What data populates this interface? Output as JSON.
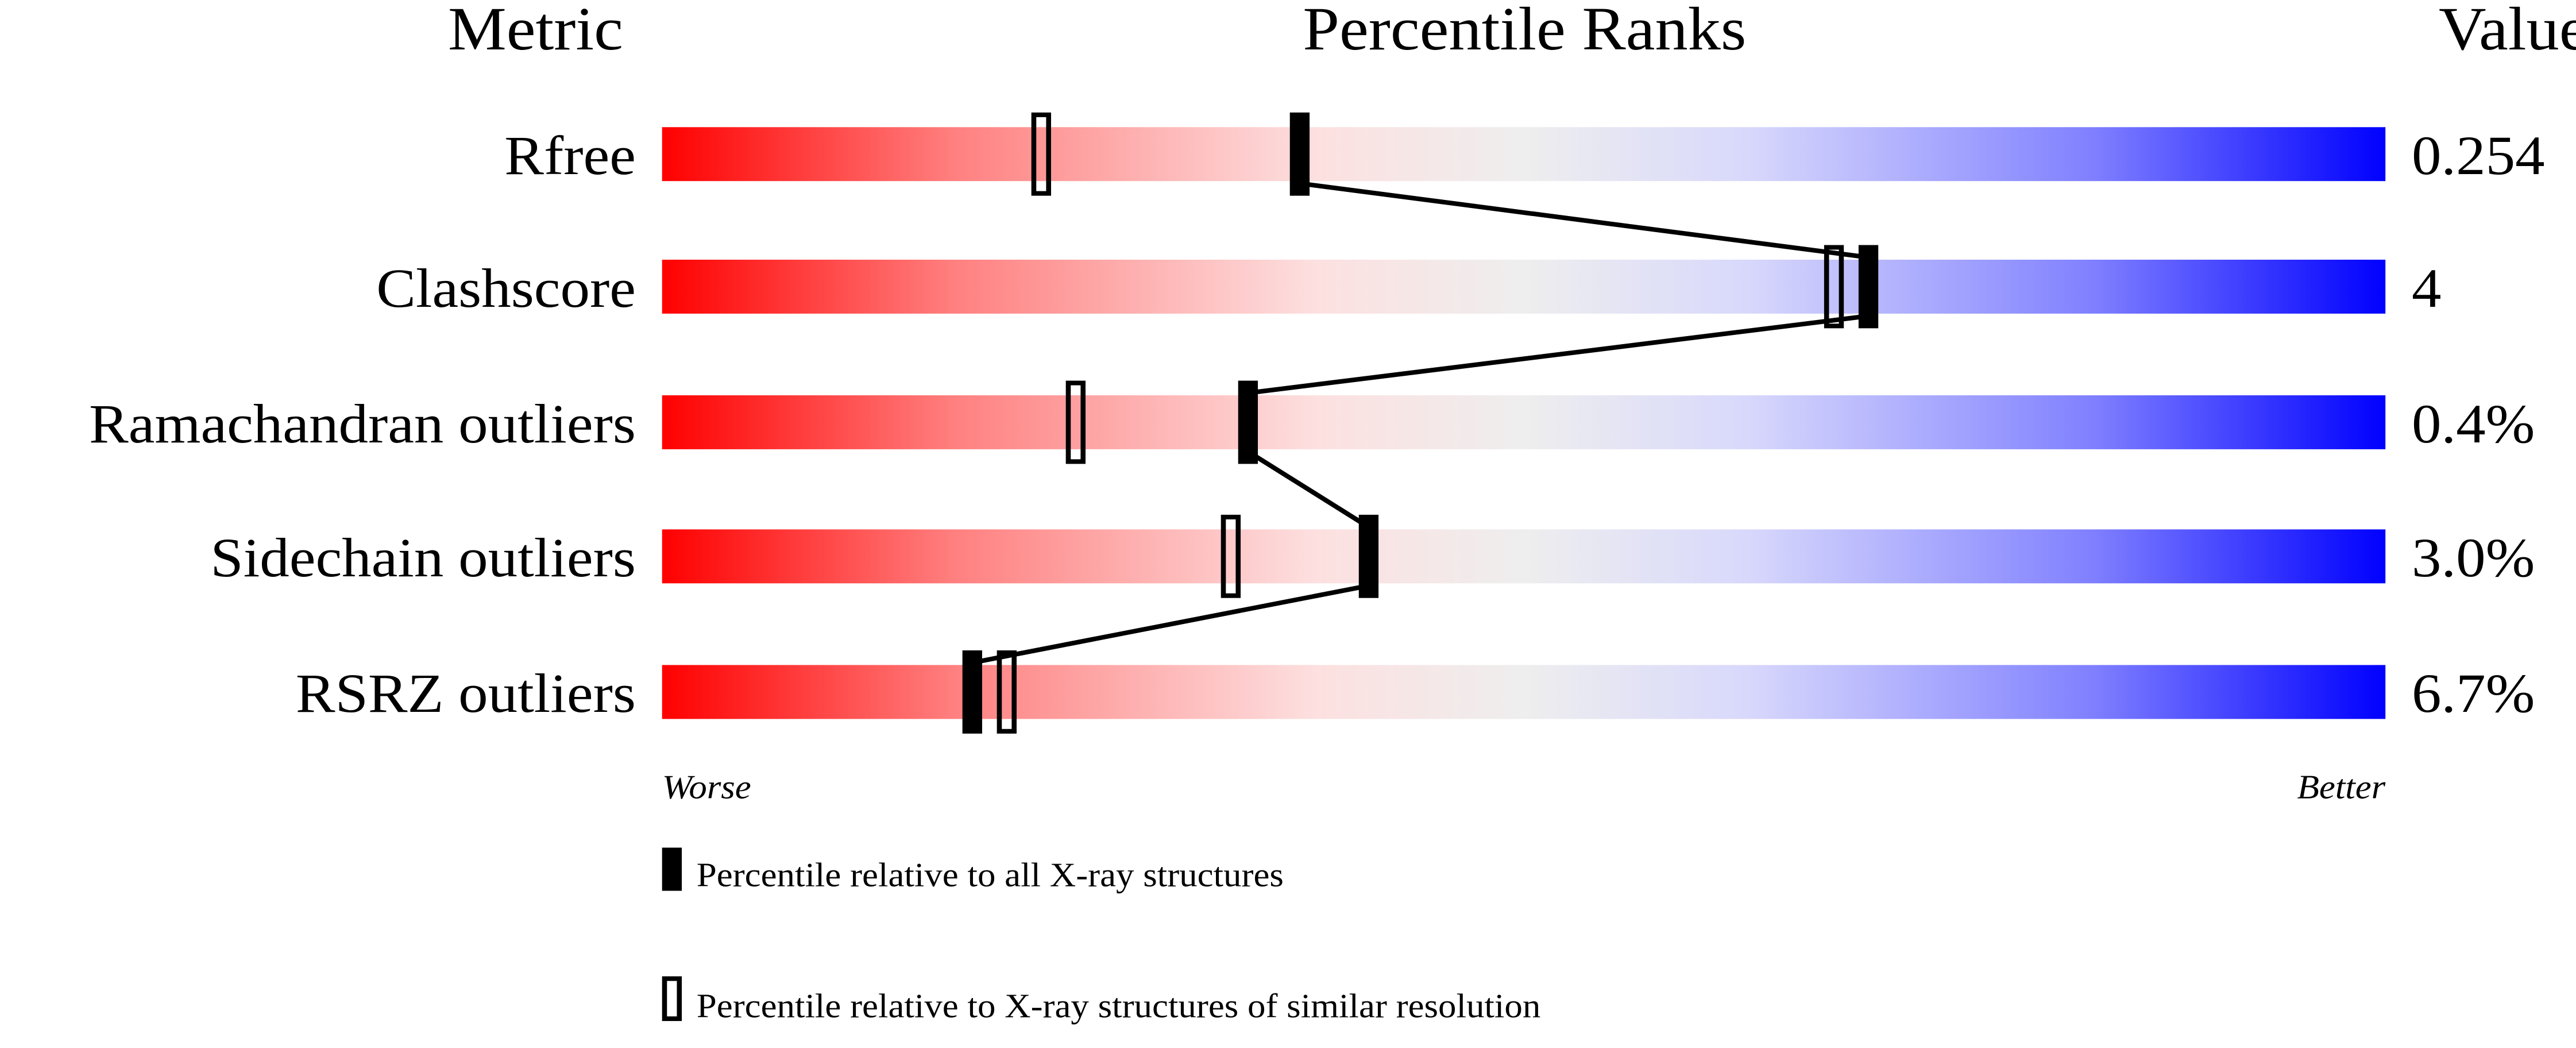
{
  "chart_data": {
    "type": "percentile-slider",
    "headers": {
      "metric": "Metric",
      "ranks": "Percentile Ranks",
      "value": "Value"
    },
    "xlim": [
      0,
      100
    ],
    "axis_labels": {
      "left": "Worse",
      "right": "Better"
    },
    "gradient_colors": [
      "#ff0000",
      "#ff8080",
      "#fde0e0",
      "#eeeeee",
      "#d8d8fc",
      "#8080ff",
      "#0000ff"
    ],
    "rows": [
      {
        "metric": "Rfree",
        "value": "0.254",
        "percentile_all": 37,
        "percentile_similar": 22
      },
      {
        "metric": "Clashscore",
        "value": "4",
        "percentile_all": 70,
        "percentile_similar": 68
      },
      {
        "metric": "Ramachandran outliers",
        "value": "0.4%",
        "percentile_all": 34,
        "percentile_similar": 24
      },
      {
        "metric": "Sidechain outliers",
        "value": "3.0%",
        "percentile_all": 41,
        "percentile_similar": 33
      },
      {
        "metric": "RSRZ outliers",
        "value": "6.7%",
        "percentile_all": 18,
        "percentile_similar": 20
      }
    ],
    "legend": [
      {
        "marker": "filled",
        "label": "Percentile relative to all X-ray structures"
      },
      {
        "marker": "open",
        "label": "Percentile relative to X-ray structures of similar resolution"
      }
    ]
  }
}
